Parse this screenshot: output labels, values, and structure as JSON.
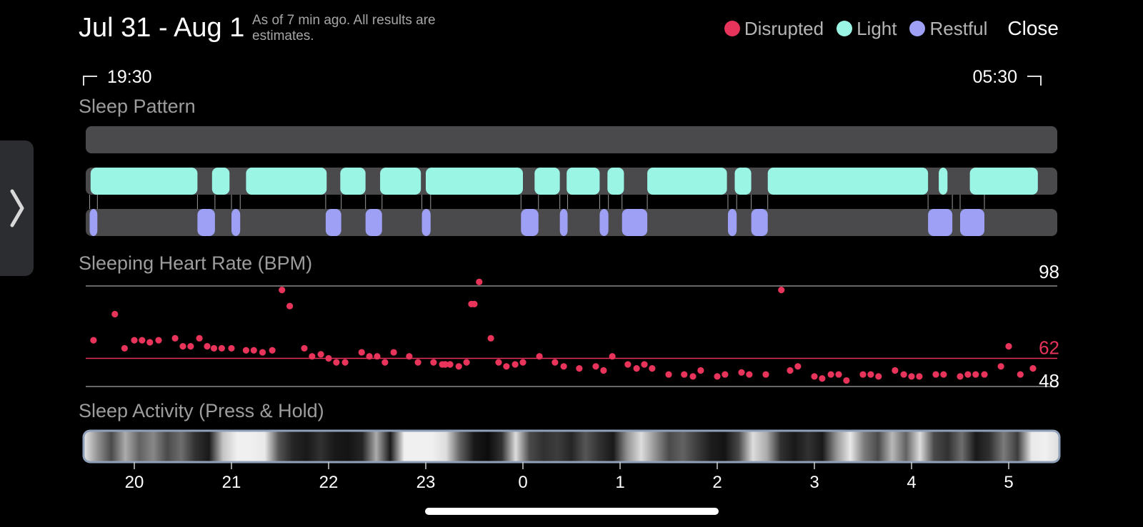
{
  "header": {
    "title": "Jul 31 - Aug 1",
    "subtitle": "As of 7 min ago. All results are estimates.",
    "close_label": "Close"
  },
  "legend": [
    {
      "label": "Disrupted",
      "color": "#E8345A"
    },
    {
      "label": "Light",
      "color": "#9AF5E5"
    },
    {
      "label": "Restful",
      "color": "#9DA0F5"
    }
  ],
  "time_range": {
    "start": "19:30",
    "end": "05:30"
  },
  "sections": {
    "sleep_pattern": "Sleep Pattern",
    "heart_rate": "Sleeping Heart Rate (BPM)",
    "activity": "Sleep Activity (Press & Hold)"
  },
  "icons": {
    "side_handle": "chevron-right-icon"
  },
  "colors": {
    "disrupted": "#E8345A",
    "light": "#9AF5E5",
    "restful": "#9DA0F5",
    "track": "#4A4A4C"
  },
  "chart_data": {
    "type": "scatter",
    "x_unit": "hours",
    "xlim": [
      -4.5,
      5.5
    ],
    "x_ticks": [
      "20",
      "21",
      "22",
      "23",
      "0",
      "1",
      "2",
      "3",
      "4",
      "5"
    ],
    "x_tick_values": [
      -4,
      -3,
      -2,
      -1,
      0,
      1,
      2,
      3,
      4,
      5
    ],
    "sleep_pattern": {
      "disrupted": [],
      "light": [
        [
          -4.45,
          -3.35
        ],
        [
          -3.2,
          -3.02
        ],
        [
          -2.85,
          -2.02
        ],
        [
          -1.88,
          -1.62
        ],
        [
          -1.47,
          -1.05
        ],
        [
          -1.0,
          0.0
        ],
        [
          0.12,
          0.38
        ],
        [
          0.45,
          0.79
        ],
        [
          0.87,
          1.04
        ],
        [
          1.28,
          2.1
        ],
        [
          2.18,
          2.35
        ],
        [
          2.52,
          4.17
        ],
        [
          4.28,
          4.37
        ],
        [
          4.6,
          5.3
        ]
      ],
      "restful": [
        [
          -4.46,
          -4.38
        ],
        [
          -3.35,
          -3.17
        ],
        [
          -3.0,
          -2.91
        ],
        [
          -2.03,
          -1.87
        ],
        [
          -1.62,
          -1.45
        ],
        [
          -1.04,
          -0.95
        ],
        [
          -0.02,
          0.16
        ],
        [
          0.38,
          0.46
        ],
        [
          0.79,
          0.88
        ],
        [
          1.02,
          1.28
        ],
        [
          2.11,
          2.2
        ],
        [
          2.35,
          2.52
        ],
        [
          4.17,
          4.42
        ],
        [
          4.5,
          4.75
        ]
      ]
    },
    "heart_rate": {
      "ymax_label": "98",
      "avg_label": "62",
      "ymin_label": "48",
      "ylim": [
        48,
        98
      ],
      "average": 62,
      "points": [
        [
          -4.42,
          71
        ],
        [
          -4.2,
          84
        ],
        [
          -4.1,
          67
        ],
        [
          -4.0,
          71
        ],
        [
          -3.92,
          71
        ],
        [
          -3.84,
          70
        ],
        [
          -3.75,
          71
        ],
        [
          -3.58,
          72
        ],
        [
          -3.5,
          68
        ],
        [
          -3.42,
          68
        ],
        [
          -3.33,
          72
        ],
        [
          -3.25,
          68
        ],
        [
          -3.18,
          67
        ],
        [
          -3.1,
          67
        ],
        [
          -3.0,
          67
        ],
        [
          -2.85,
          66
        ],
        [
          -2.77,
          66
        ],
        [
          -2.68,
          65
        ],
        [
          -2.58,
          66
        ],
        [
          -2.48,
          96
        ],
        [
          -2.4,
          88
        ],
        [
          -2.25,
          67
        ],
        [
          -2.17,
          63
        ],
        [
          -2.08,
          64
        ],
        [
          -2.0,
          62
        ],
        [
          -1.92,
          60
        ],
        [
          -1.83,
          60
        ],
        [
          -1.66,
          65
        ],
        [
          -1.58,
          63
        ],
        [
          -1.5,
          63
        ],
        [
          -1.42,
          60
        ],
        [
          -1.33,
          65
        ],
        [
          -1.17,
          63
        ],
        [
          -1.08,
          60
        ],
        [
          -0.92,
          60
        ],
        [
          -0.83,
          59
        ],
        [
          -0.75,
          59
        ],
        [
          -0.66,
          58
        ],
        [
          -0.8,
          59
        ],
        [
          -0.8,
          59
        ],
        [
          -0.45,
          100
        ],
        [
          -0.53,
          89
        ],
        [
          -0.5,
          89
        ],
        [
          -0.33,
          72
        ],
        [
          -0.58,
          60
        ],
        [
          -0.25,
          60
        ],
        [
          -0.17,
          58
        ],
        [
          -0.08,
          59
        ],
        [
          0.0,
          60
        ],
        [
          -0.75,
          59
        ],
        [
          0.17,
          63
        ],
        [
          0.33,
          60
        ],
        [
          0.42,
          58
        ],
        [
          0.58,
          57
        ],
        [
          0.75,
          58
        ],
        [
          0.83,
          56
        ],
        [
          0.92,
          63
        ],
        [
          1.08,
          59
        ],
        [
          1.17,
          57
        ],
        [
          1.25,
          59
        ],
        [
          1.33,
          57
        ],
        [
          1.5,
          54
        ],
        [
          1.66,
          54
        ],
        [
          1.75,
          53
        ],
        [
          1.83,
          56
        ],
        [
          2.0,
          53
        ],
        [
          2.08,
          54
        ],
        [
          2.25,
          55
        ],
        [
          2.33,
          54
        ],
        [
          2.5,
          54
        ],
        [
          2.66,
          96
        ],
        [
          2.75,
          56
        ],
        [
          2.83,
          58
        ],
        [
          3.0,
          53
        ],
        [
          3.08,
          52
        ],
        [
          3.17,
          54
        ],
        [
          3.25,
          54
        ],
        [
          3.33,
          51
        ],
        [
          3.5,
          54
        ],
        [
          3.58,
          54
        ],
        [
          3.66,
          53
        ],
        [
          3.83,
          56
        ],
        [
          3.92,
          54
        ],
        [
          4.0,
          53
        ],
        [
          4.08,
          53
        ],
        [
          4.25,
          54
        ],
        [
          4.33,
          54
        ],
        [
          4.5,
          53
        ],
        [
          4.58,
          54
        ],
        [
          4.66,
          54
        ],
        [
          4.75,
          54
        ],
        [
          4.92,
          58
        ],
        [
          5.0,
          68
        ],
        [
          5.12,
          54
        ],
        [
          5.25,
          57
        ]
      ]
    },
    "activity": {
      "grayscale": [
        0.95,
        0.6,
        0.3,
        0.7,
        0.4,
        0.55,
        0.3,
        0.45,
        0.2,
        0.1,
        0.8,
        0.98,
        0.98,
        0.95,
        0.35,
        0.15,
        0.1,
        0.2,
        0.1,
        0.08,
        0.15,
        0.7,
        0.1,
        0.98,
        0.98,
        0.98,
        0.9,
        0.4,
        0.1,
        0.05,
        0.2,
        0.9,
        0.3,
        0.2,
        0.25,
        0.15,
        0.35,
        0.2,
        0.1,
        0.6,
        0.9,
        0.6,
        0.3,
        0.4,
        0.25,
        0.12,
        0.08,
        0.3,
        0.9,
        0.7,
        0.2,
        0.1,
        0.2,
        0.1,
        0.6,
        0.95,
        0.5,
        0.3,
        0.75,
        0.4,
        0.9,
        0.3,
        0.2,
        0.45,
        0.1,
        0.2,
        0.5,
        0.25,
        0.95,
        0.98,
        0.9
      ]
    }
  }
}
